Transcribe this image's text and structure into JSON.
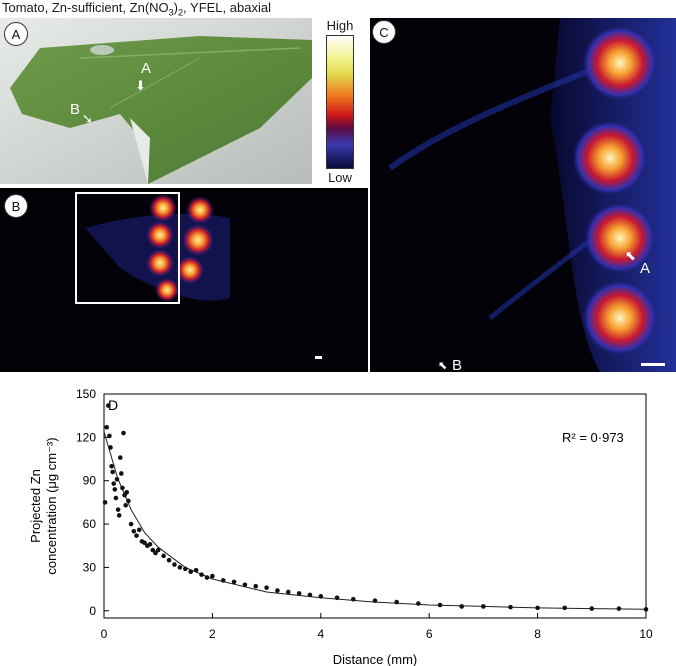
{
  "figure": {
    "title_main": "Tomato, Zn-sufficient, Zn(NO",
    "title_sub": "3",
    "title_end": ")",
    "title_sub2": "2",
    "title_tail": ", YFEL, abaxial"
  },
  "panels": {
    "a": {
      "badge": "A",
      "arrow_a": "A",
      "arrow_b": "B"
    },
    "b": {
      "badge": "B"
    },
    "c": {
      "badge": "C",
      "arrow_a": "A",
      "arrow_b": "B"
    },
    "d": {
      "badge": "D"
    }
  },
  "colorbar": {
    "high": "High",
    "low": "Low"
  },
  "chart_data": {
    "type": "scatter",
    "title": "",
    "xlabel": "Distance (mm)",
    "ylabel_line1": "Projected Zn",
    "ylabel_line2": "concentration (μg cm⁻³)",
    "xlim": [
      0,
      10
    ],
    "ylim": [
      -5,
      150
    ],
    "xticks": [
      0,
      2,
      4,
      6,
      8,
      10
    ],
    "yticks": [
      0,
      30,
      60,
      90,
      120,
      150
    ],
    "annotation": "R² = 0·973",
    "fit": {
      "form": "decay",
      "a": 124,
      "k": 0.62,
      "points": [
        [
          0.0,
          124
        ],
        [
          0.25,
          92
        ],
        [
          0.5,
          70
        ],
        [
          0.75,
          54
        ],
        [
          1.0,
          44
        ],
        [
          1.5,
          30
        ],
        [
          2.0,
          22
        ],
        [
          3.0,
          13
        ],
        [
          4.0,
          9
        ],
        [
          5.0,
          6
        ],
        [
          6.0,
          4
        ],
        [
          7.0,
          3
        ],
        [
          8.0,
          2
        ],
        [
          9.0,
          1.5
        ],
        [
          10.0,
          1
        ]
      ]
    },
    "series": [
      {
        "values": [
          [
            0.02,
            75
          ],
          [
            0.05,
            127
          ],
          [
            0.08,
            142
          ],
          [
            0.1,
            121
          ],
          [
            0.12,
            113
          ],
          [
            0.14,
            100
          ],
          [
            0.16,
            96
          ],
          [
            0.18,
            88
          ],
          [
            0.2,
            84
          ],
          [
            0.22,
            78
          ],
          [
            0.24,
            91
          ],
          [
            0.26,
            70
          ],
          [
            0.28,
            66
          ],
          [
            0.3,
            106
          ],
          [
            0.32,
            95
          ],
          [
            0.34,
            85
          ],
          [
            0.36,
            123
          ],
          [
            0.38,
            80
          ],
          [
            0.4,
            73
          ],
          [
            0.42,
            82
          ],
          [
            0.45,
            76
          ],
          [
            0.5,
            60
          ],
          [
            0.55,
            55
          ],
          [
            0.6,
            52
          ],
          [
            0.65,
            56
          ],
          [
            0.7,
            48
          ],
          [
            0.75,
            47
          ],
          [
            0.8,
            45
          ],
          [
            0.85,
            46
          ],
          [
            0.9,
            42
          ],
          [
            0.95,
            40
          ],
          [
            1.0,
            42
          ],
          [
            1.1,
            38
          ],
          [
            1.2,
            35
          ],
          [
            1.3,
            32
          ],
          [
            1.4,
            30
          ],
          [
            1.5,
            29
          ],
          [
            1.6,
            27
          ],
          [
            1.7,
            28
          ],
          [
            1.8,
            25
          ],
          [
            1.9,
            23
          ],
          [
            2.0,
            24
          ],
          [
            2.2,
            21
          ],
          [
            2.4,
            20
          ],
          [
            2.6,
            18
          ],
          [
            2.8,
            17
          ],
          [
            3.0,
            16
          ],
          [
            3.2,
            14
          ],
          [
            3.4,
            13
          ],
          [
            3.6,
            12
          ],
          [
            3.8,
            11
          ],
          [
            4.0,
            10
          ],
          [
            4.3,
            9
          ],
          [
            4.6,
            8
          ],
          [
            5.0,
            7
          ],
          [
            5.4,
            6
          ],
          [
            5.8,
            5
          ],
          [
            6.2,
            4
          ],
          [
            6.6,
            3
          ],
          [
            7.0,
            3
          ],
          [
            7.5,
            2.5
          ],
          [
            8.0,
            2
          ],
          [
            8.5,
            2
          ],
          [
            9.0,
            1.5
          ],
          [
            9.5,
            1.5
          ],
          [
            10.0,
            1
          ]
        ]
      }
    ]
  }
}
